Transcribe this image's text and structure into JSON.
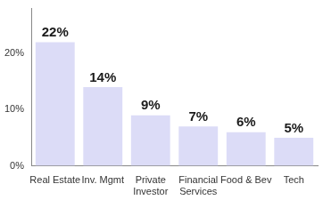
{
  "chart_data": {
    "type": "bar",
    "categories": [
      "Real Estate",
      "Inv. Mgmt",
      "Private\nInvestor",
      "Financial\nServices",
      "Food & Bev",
      "Tech"
    ],
    "values": [
      22,
      14,
      9,
      7,
      6,
      5
    ],
    "value_labels": [
      "22%",
      "14%",
      "9%",
      "7%",
      "6%",
      "5%"
    ],
    "color": "#dcdcf7",
    "ylim": [
      0,
      28
    ],
    "yticks": [
      {
        "value": 0,
        "label": "0%"
      },
      {
        "value": 10,
        "label": "10%"
      },
      {
        "value": 20,
        "label": "20%"
      }
    ],
    "grid": false,
    "data_labels": true
  }
}
